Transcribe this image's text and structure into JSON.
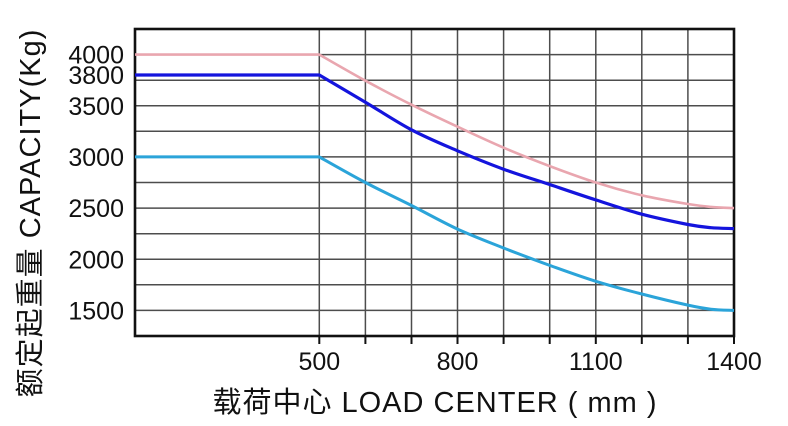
{
  "chart_data": {
    "type": "line",
    "title": "",
    "xlabel": "载荷中心 LOAD CENTER ( mm )",
    "ylabel": "额定起重量 CAPACITY(Kg)",
    "x_unit": "mm",
    "y_unit": "Kg",
    "xlim": [
      100,
      1400
    ],
    "ylim": [
      1250,
      4250
    ],
    "grid": true,
    "legend": "none",
    "x_gridlines": [
      500,
      600,
      700,
      800,
      900,
      1000,
      1100,
      1200,
      1300
    ],
    "y_gridlines": [
      1500,
      1750,
      2000,
      2250,
      2500,
      2750,
      3000,
      3250,
      3500,
      3750,
      4000
    ],
    "x_tick_marks": [
      500,
      600,
      700,
      800,
      900,
      1000,
      1100,
      1200,
      1300,
      1400
    ],
    "x_tick_labels": [
      500,
      800,
      1100,
      1400
    ],
    "y_tick_labels": [
      4000,
      3800,
      3500,
      3000,
      2500,
      2000,
      1500
    ],
    "colors": {
      "grid": "#4d4d4d",
      "border": "#111111",
      "text": "#111111",
      "background": "#ffffff"
    },
    "series": [
      {
        "name": "4000",
        "color": "#e9a6af",
        "stroke_width": 2.6,
        "points": [
          [
            100,
            4000
          ],
          [
            500,
            4000
          ],
          [
            600,
            3745
          ],
          [
            700,
            3510
          ],
          [
            800,
            3295
          ],
          [
            900,
            3090
          ],
          [
            1000,
            2910
          ],
          [
            1100,
            2750
          ],
          [
            1200,
            2625
          ],
          [
            1300,
            2540
          ],
          [
            1350,
            2512
          ],
          [
            1400,
            2500
          ]
        ]
      },
      {
        "name": "3800",
        "color": "#1414dd",
        "stroke_width": 3.2,
        "points": [
          [
            100,
            3800
          ],
          [
            500,
            3800
          ],
          [
            600,
            3535
          ],
          [
            700,
            3265
          ],
          [
            800,
            3060
          ],
          [
            900,
            2880
          ],
          [
            1000,
            2730
          ],
          [
            1100,
            2580
          ],
          [
            1200,
            2440
          ],
          [
            1300,
            2340
          ],
          [
            1350,
            2308
          ],
          [
            1400,
            2300
          ]
        ]
      },
      {
        "name": "3000",
        "color": "#2ba4d9",
        "stroke_width": 3.0,
        "points": [
          [
            100,
            3000
          ],
          [
            500,
            3000
          ],
          [
            600,
            2750
          ],
          [
            700,
            2525
          ],
          [
            800,
            2295
          ],
          [
            900,
            2110
          ],
          [
            1000,
            1940
          ],
          [
            1100,
            1785
          ],
          [
            1200,
            1660
          ],
          [
            1300,
            1552
          ],
          [
            1350,
            1512
          ],
          [
            1400,
            1500
          ]
        ]
      }
    ]
  }
}
